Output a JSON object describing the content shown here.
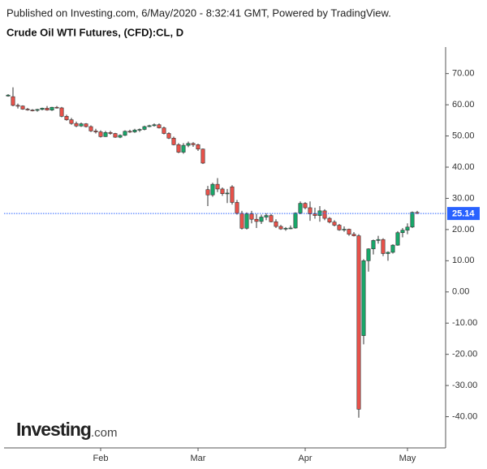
{
  "chart_data": {
    "type": "candlestick",
    "published": "Published on Investing.com, 6/May/2020 - 8:32:41 GMT, Powered by TradingView.",
    "title": "Crude Oil WTI Futures, (CFD):CL, D",
    "logo_main": "Investing",
    "logo_suffix": ".com",
    "categories": [
      null,
      null,
      null,
      null,
      null,
      null,
      null,
      null,
      null,
      null,
      null,
      null,
      null,
      null,
      null,
      null,
      null,
      null,
      null,
      "Feb",
      null,
      null,
      null,
      null,
      null,
      null,
      null,
      null,
      null,
      null,
      null,
      null,
      null,
      null,
      null,
      null,
      null,
      null,
      null,
      "Mar",
      null,
      null,
      null,
      null,
      null,
      null,
      null,
      null,
      null,
      null,
      null,
      null,
      null,
      null,
      null,
      null,
      null,
      null,
      null,
      null,
      null,
      "Apr",
      null,
      null,
      null,
      null,
      null,
      null,
      null,
      null,
      null,
      null,
      null,
      null,
      null,
      null,
      null,
      null,
      null,
      null,
      null,
      null,
      "May",
      null,
      null
    ],
    "open": [
      62.8,
      62.6,
      59.8,
      59.6,
      58.6,
      58.3,
      58.2,
      58.5,
      58.9,
      58.3,
      59.2,
      59.0,
      56.3,
      55.2,
      54.0,
      53.2,
      53.9,
      53.0,
      51.6,
      51.3,
      49.8,
      51.1,
      50.8,
      49.6,
      50.2,
      51.5,
      51.3,
      51.9,
      52.1,
      53.0,
      53.3,
      53.6,
      52.6,
      50.8,
      49.3,
      47.2,
      44.8,
      47.0,
      47.6,
      47.2,
      45.8,
      32.8,
      31.1,
      34.5,
      33.0,
      31.5,
      33.7,
      28.7,
      25.2,
      20.4,
      25.0,
      23.3,
      22.6,
      24.0,
      24.5,
      22.5,
      21.0,
      20.2,
      20.4,
      20.5,
      25.3,
      28.4,
      27.0,
      25.0,
      24.5,
      26.0,
      23.6,
      22.4,
      21.4,
      19.9,
      20.1,
      18.5,
      18.0,
      -14.0,
      10.0,
      13.8,
      16.5,
      16.8,
      12.3,
      12.7,
      15.0,
      19.0,
      19.8,
      20.8,
      25.5
    ],
    "high": [
      63.4,
      65.6,
      60.4,
      59.8,
      59.0,
      58.6,
      58.7,
      59.1,
      59.6,
      59.3,
      59.6,
      59.3,
      56.8,
      55.8,
      54.6,
      54.3,
      54.1,
      53.4,
      52.3,
      51.8,
      51.6,
      51.6,
      51.0,
      50.5,
      51.8,
      52.0,
      52.3,
      52.4,
      53.3,
      53.6,
      54.0,
      54.0,
      53.0,
      51.2,
      49.8,
      47.7,
      47.7,
      48.2,
      48.0,
      47.5,
      46.0,
      34.0,
      35.0,
      36.5,
      33.5,
      33.0,
      34.2,
      29.5,
      26.0,
      25.5,
      26.0,
      25.0,
      24.8,
      25.2,
      25.0,
      23.3,
      21.5,
      20.8,
      21.3,
      25.5,
      29.0,
      28.8,
      29.0,
      27.0,
      27.5,
      26.5,
      24.0,
      23.0,
      21.8,
      21.0,
      20.3,
      19.2,
      18.5,
      10.5,
      14.0,
      16.8,
      18.0,
      17.2,
      13.0,
      15.3,
      19.5,
      20.5,
      22.0,
      25.8,
      26.0
    ],
    "low": [
      62.6,
      59.5,
      58.8,
      58.4,
      58.1,
      57.9,
      57.8,
      58.2,
      58.1,
      58.0,
      58.8,
      56.0,
      54.9,
      53.6,
      52.8,
      52.9,
      52.7,
      51.3,
      50.8,
      49.5,
      49.7,
      50.4,
      49.4,
      49.3,
      50.0,
      51.0,
      51.0,
      51.3,
      51.8,
      52.8,
      53.0,
      52.4,
      50.5,
      49.0,
      47.0,
      44.5,
      44.3,
      46.4,
      46.5,
      45.2,
      41.0,
      27.5,
      30.5,
      32.0,
      30.8,
      28.5,
      28.0,
      24.8,
      20.0,
      20.0,
      22.0,
      20.5,
      21.8,
      23.0,
      22.3,
      20.5,
      19.9,
      19.6,
      20.1,
      20.3,
      24.9,
      26.5,
      22.8,
      23.5,
      22.5,
      23.0,
      22.0,
      21.0,
      19.6,
      19.3,
      18.0,
      17.8,
      -40.3,
      -16.8,
      6.5,
      12.0,
      15.5,
      11.5,
      10.0,
      12.3,
      14.8,
      17.5,
      18.5,
      20.5,
      25.0
    ],
    "close": [
      63.1,
      59.8,
      59.6,
      58.6,
      58.4,
      58.2,
      58.5,
      58.9,
      58.3,
      59.2,
      59.0,
      56.3,
      55.2,
      54.0,
      53.2,
      53.9,
      53.0,
      51.6,
      51.3,
      49.8,
      51.1,
      50.8,
      49.6,
      50.2,
      51.5,
      51.3,
      51.9,
      52.1,
      53.0,
      53.3,
      53.6,
      52.6,
      50.8,
      49.3,
      47.2,
      44.8,
      47.0,
      47.6,
      47.2,
      45.8,
      41.3,
      31.1,
      34.5,
      33.0,
      31.5,
      31.7,
      28.7,
      25.2,
      20.4,
      25.0,
      23.3,
      22.6,
      24.0,
      24.5,
      22.5,
      21.0,
      20.2,
      20.4,
      20.5,
      25.3,
      28.4,
      27.0,
      25.0,
      24.5,
      26.0,
      23.6,
      22.4,
      21.4,
      19.9,
      20.1,
      18.5,
      18.0,
      -37.6,
      10.0,
      13.8,
      16.5,
      16.8,
      12.3,
      12.7,
      15.0,
      19.0,
      19.8,
      20.8,
      25.5,
      25.14
    ],
    "up_color": "#18a86a",
    "down_color": "#e9524a",
    "wick_color": "#333333",
    "last_price": 25.14,
    "last_price_color": "#2962ff",
    "ylim": [
      -50,
      78.5
    ],
    "yticks": [
      {
        "value": -40,
        "label": "-40.00"
      },
      {
        "value": -30,
        "label": "-30.00"
      },
      {
        "value": -20,
        "label": "-20.00"
      },
      {
        "value": -10,
        "label": "-10.00"
      },
      {
        "value": 0,
        "label": "0.00"
      },
      {
        "value": 10,
        "label": "10.00"
      },
      {
        "value": 20,
        "label": "20.00"
      },
      {
        "value": 30,
        "label": "30.00"
      },
      {
        "value": 40,
        "label": "40.00"
      },
      {
        "value": 50,
        "label": "50.00"
      },
      {
        "value": 60,
        "label": "60.00"
      },
      {
        "value": 70,
        "label": "70.00"
      }
    ],
    "grid": false
  }
}
